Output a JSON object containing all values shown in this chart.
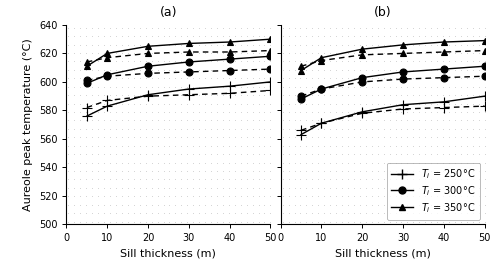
{
  "x": [
    5,
    10,
    20,
    30,
    40,
    50
  ],
  "panel_a": {
    "solid": {
      "Ti250": [
        576,
        583,
        591,
        595,
        597,
        600
      ],
      "Ti300": [
        599,
        605,
        611,
        614,
        616,
        618
      ],
      "Ti350": [
        611,
        620,
        625,
        627,
        628,
        630
      ]
    },
    "dashed": {
      "Ti250": [
        582,
        587,
        590,
        591,
        592,
        594
      ],
      "Ti300": [
        601,
        604,
        606,
        607,
        608,
        609
      ],
      "Ti350": [
        614,
        617,
        620,
        621,
        621,
        622
      ]
    }
  },
  "panel_b": {
    "solid": {
      "Ti250": [
        563,
        571,
        579,
        584,
        586,
        590
      ],
      "Ti300": [
        588,
        595,
        603,
        607,
        609,
        611
      ],
      "Ti350": [
        608,
        617,
        623,
        626,
        628,
        629
      ]
    },
    "dashed": {
      "Ti250": [
        566,
        571,
        578,
        581,
        582,
        583
      ],
      "Ti300": [
        590,
        595,
        600,
        602,
        603,
        604
      ],
      "Ti350": [
        611,
        615,
        619,
        620,
        621,
        622
      ]
    }
  },
  "legend_labels": [
    "$T_i$ = 250°C",
    "$T_i$ = 300°C",
    "$T_i$ = 350°C"
  ],
  "ylabel": "Aureole peak temperature (°C)",
  "xlabel": "Sill thickness (m)",
  "ylim": [
    500,
    640
  ],
  "xlim": [
    0,
    50
  ],
  "yticks": [
    500,
    520,
    540,
    560,
    580,
    600,
    620,
    640
  ],
  "xticks": [
    0,
    10,
    20,
    30,
    40,
    50
  ],
  "panel_labels": [
    "(a)",
    "(b)"
  ],
  "dot_color": "#aaaaaa",
  "bg_color": "#e8e8e8",
  "linewidth": 1.0,
  "figsize": [
    4.92,
    2.77
  ],
  "dpi": 100
}
